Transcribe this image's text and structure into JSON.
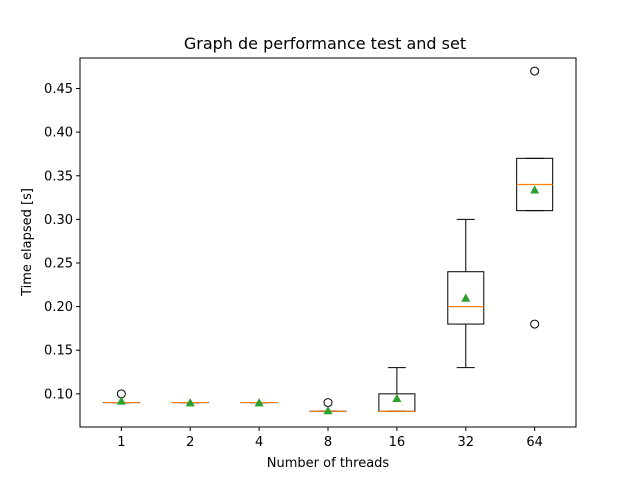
{
  "chart_data": {
    "type": "boxplot",
    "title": "Graph de performance test and set",
    "xlabel": "Number of threads",
    "ylabel": "Time elapsed [s]",
    "ylim": [
      0.062,
      0.485
    ],
    "yticks": [
      "0.10",
      "0.15",
      "0.20",
      "0.25",
      "0.30",
      "0.35",
      "0.40",
      "0.45"
    ],
    "categories": [
      "1",
      "2",
      "4",
      "8",
      "16",
      "32",
      "64"
    ],
    "boxes": [
      {
        "category": "1",
        "whisker_low": 0.09,
        "q1": 0.09,
        "median": 0.09,
        "q3": 0.09,
        "whisker_high": 0.09,
        "mean": 0.092,
        "outliers": [
          0.1
        ]
      },
      {
        "category": "2",
        "whisker_low": 0.09,
        "q1": 0.09,
        "median": 0.09,
        "q3": 0.09,
        "whisker_high": 0.09,
        "mean": 0.09,
        "outliers": []
      },
      {
        "category": "4",
        "whisker_low": 0.09,
        "q1": 0.09,
        "median": 0.09,
        "q3": 0.09,
        "whisker_high": 0.09,
        "mean": 0.09,
        "outliers": []
      },
      {
        "category": "8",
        "whisker_low": 0.08,
        "q1": 0.08,
        "median": 0.08,
        "q3": 0.08,
        "whisker_high": 0.08,
        "mean": 0.081,
        "outliers": [
          0.09
        ]
      },
      {
        "category": "16",
        "whisker_low": 0.08,
        "q1": 0.08,
        "median": 0.08,
        "q3": 0.1,
        "whisker_high": 0.13,
        "mean": 0.095,
        "outliers": []
      },
      {
        "category": "32",
        "whisker_low": 0.13,
        "q1": 0.18,
        "median": 0.2,
        "q3": 0.24,
        "whisker_high": 0.3,
        "mean": 0.21,
        "outliers": []
      },
      {
        "category": "64",
        "whisker_low": 0.31,
        "q1": 0.31,
        "median": 0.34,
        "q3": 0.37,
        "whisker_high": 0.37,
        "mean": 0.334,
        "outliers": [
          0.47,
          0.18
        ]
      }
    ],
    "grid": false,
    "colors": {
      "box": "#000000",
      "median": "#ff7f0e",
      "mean": "#2ca02c",
      "outlier": "#000000"
    }
  }
}
